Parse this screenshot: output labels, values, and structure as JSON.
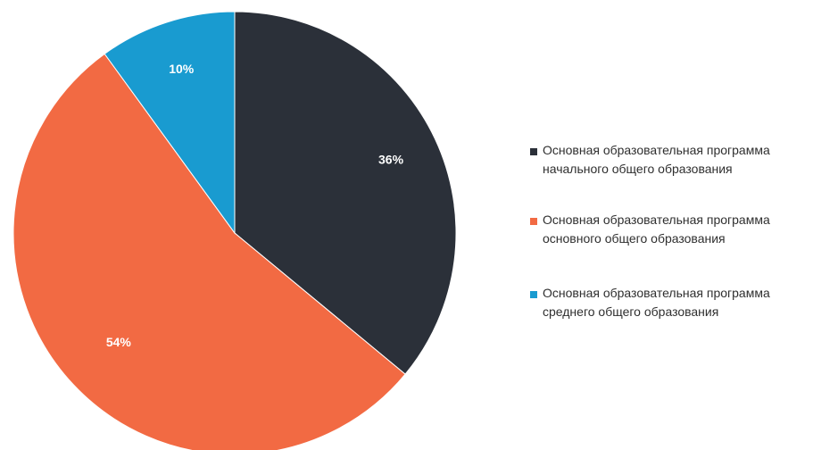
{
  "chart_data": {
    "type": "pie",
    "categories": [
      "Основная образовательная программа начального общего образования",
      "Основная образовательная программа основного общего образования",
      "Основная образовательная программа среднего общего образования"
    ],
    "values": [
      36,
      54,
      10
    ],
    "data_labels": [
      "36%",
      "54%",
      "10%"
    ],
    "colors": [
      "#2b3039",
      "#f26a43",
      "#199bd0"
    ],
    "start_angle": "12 o'clock",
    "direction": "clockwise",
    "legend_position": "right"
  },
  "legend": {
    "items": [
      {
        "line1": "Основная образовательная программа",
        "line2": "начального общего образования"
      },
      {
        "line1": "Основная образовательная программа",
        "line2": "основного общего образования"
      },
      {
        "line1": "Основная образовательная программа",
        "line2": "среднего общего образования"
      }
    ]
  }
}
